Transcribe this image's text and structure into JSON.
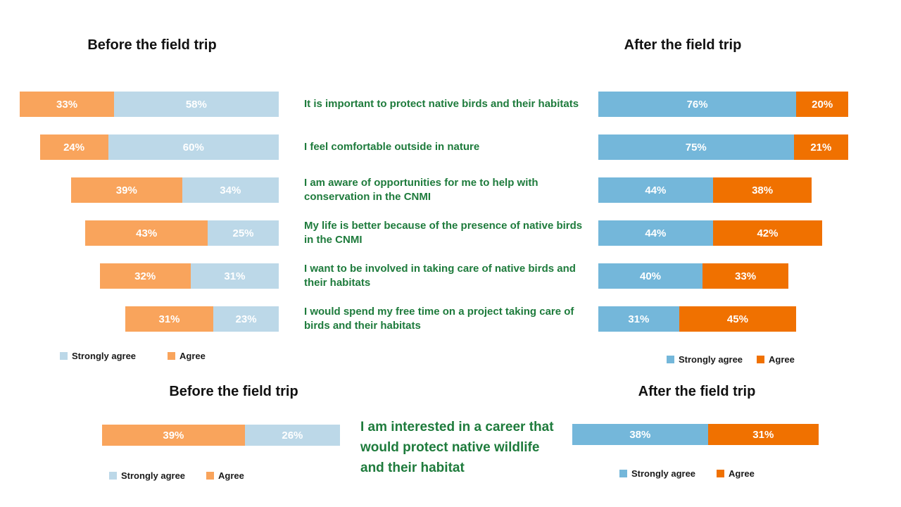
{
  "colors": {
    "before_agree": "#F9A45C",
    "before_strongly_agree": "#BCD8E8",
    "after_strongly_agree": "#74B7DA",
    "after_agree": "#F07100",
    "statement_text": "#1E7B3C",
    "title_text": "#111111",
    "bar_value_text": "#FFFFFF"
  },
  "chart_data": [
    {
      "id": "before-top",
      "type": "bar",
      "title": "Before the field trip",
      "orientation": "horizontal",
      "direction": "right-aligned",
      "xlim": [
        0,
        100
      ],
      "grid": false,
      "value_suffix": "%",
      "legend_position": "bottom-left",
      "categories": [
        "It is important to protect native birds and their habitats",
        "I feel comfortable outside in nature",
        "I am aware of opportunities for me to help with conservation in the CNMI",
        "My life is better because of the presence of native birds in the CNMI",
        "I want to be involved in taking care of native birds and their habitats",
        "I would spend my free time on a project taking care of birds and their habitats"
      ],
      "series": [
        {
          "name": "Agree",
          "color": "#F9A45C",
          "values": [
            33,
            24,
            39,
            43,
            32,
            31
          ]
        },
        {
          "name": "Strongly agree",
          "color": "#BCD8E8",
          "values": [
            58,
            60,
            34,
            25,
            31,
            23
          ]
        }
      ],
      "legend": [
        {
          "label": "Strongly agree",
          "color": "#BCD8E8"
        },
        {
          "label": "Agree",
          "color": "#F9A45C"
        }
      ]
    },
    {
      "id": "after-top",
      "type": "bar",
      "title": "After the field trip",
      "orientation": "horizontal",
      "direction": "left-aligned",
      "xlim": [
        0,
        100
      ],
      "grid": false,
      "value_suffix": "%",
      "legend_position": "bottom-right",
      "categories": [
        "It is important to protect native birds and their habitats",
        "I feel comfortable outside in nature",
        "I am aware of opportunities for me to help with conservation in the CNMI",
        "My life is better because of the presence of native birds in the CNMI",
        "I want to be involved in taking care of native birds and their habitats",
        "I would spend my free time on a project taking care of birds and their habitats"
      ],
      "series": [
        {
          "name": "Strongly agree",
          "color": "#74B7DA",
          "values": [
            76,
            75,
            44,
            44,
            40,
            31
          ]
        },
        {
          "name": "Agree",
          "color": "#F07100",
          "values": [
            20,
            21,
            38,
            42,
            33,
            45
          ]
        }
      ],
      "legend": [
        {
          "label": "Strongly agree",
          "color": "#74B7DA"
        },
        {
          "label": "Agree",
          "color": "#F07100"
        }
      ]
    },
    {
      "id": "before-career",
      "type": "bar",
      "title": "Before the field trip",
      "orientation": "horizontal",
      "direction": "right-aligned",
      "xlim": [
        0,
        100
      ],
      "grid": false,
      "value_suffix": "%",
      "legend_position": "bottom-left",
      "categories": [
        "I am interested in a career that would protect native wildlife and their habitat"
      ],
      "series": [
        {
          "name": "Agree",
          "color": "#F9A45C",
          "values": [
            39
          ]
        },
        {
          "name": "Strongly agree",
          "color": "#BCD8E8",
          "values": [
            26
          ]
        }
      ],
      "legend": [
        {
          "label": "Strongly agree",
          "color": "#BCD8E8"
        },
        {
          "label": "Agree",
          "color": "#F9A45C"
        }
      ]
    },
    {
      "id": "after-career",
      "type": "bar",
      "title": "After the field trip",
      "orientation": "horizontal",
      "direction": "left-aligned",
      "xlim": [
        0,
        100
      ],
      "grid": false,
      "value_suffix": "%",
      "legend_position": "bottom-right",
      "categories": [
        "I am interested in a career that would protect native wildlife and their habitat"
      ],
      "series": [
        {
          "name": "Strongly agree",
          "color": "#74B7DA",
          "values": [
            38
          ]
        },
        {
          "name": "Agree",
          "color": "#F07100",
          "values": [
            31
          ]
        }
      ],
      "legend": [
        {
          "label": "Strongly agree",
          "color": "#74B7DA"
        },
        {
          "label": "Agree",
          "color": "#F07100"
        }
      ]
    }
  ]
}
